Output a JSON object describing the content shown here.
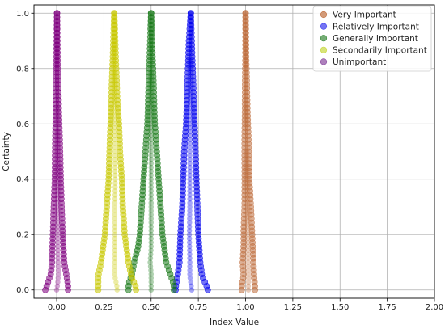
{
  "chart_data": {
    "type": "scatter",
    "xlabel": "Index Value",
    "ylabel": "Certainty",
    "xlim": [
      -0.12,
      2.0
    ],
    "ylim": [
      -0.03,
      1.03
    ],
    "xticks": [
      "0.00",
      "0.25",
      "0.50",
      "0.75",
      "1.00",
      "1.25",
      "1.50",
      "1.75",
      "2.00"
    ],
    "yticks": [
      "0.0",
      "0.2",
      "0.4",
      "0.6",
      "0.8",
      "1.0"
    ],
    "grid": true,
    "legend_position": "top-right",
    "series": [
      {
        "name": "Very Important",
        "color": "#c07040",
        "peak": 1.0,
        "base": [
          0.98,
          1.05
        ],
        "points": [
          [
            0.98,
            0.02
          ],
          [
            0.99,
            0.05
          ],
          [
            0.985,
            0.1
          ],
          [
            0.99,
            0.16
          ],
          [
            0.99,
            0.22
          ],
          [
            0.995,
            0.3
          ],
          [
            0.995,
            0.4
          ],
          [
            0.995,
            0.55
          ],
          [
            0.997,
            0.7
          ],
          [
            0.999,
            0.85
          ],
          [
            1.0,
            1.0
          ],
          [
            1.003,
            0.85
          ],
          [
            1.008,
            0.7
          ],
          [
            1.015,
            0.55
          ],
          [
            1.02,
            0.4
          ],
          [
            1.028,
            0.3
          ],
          [
            1.035,
            0.2
          ],
          [
            1.04,
            0.12
          ],
          [
            1.045,
            0.05
          ],
          [
            1.05,
            0.01
          ]
        ]
      },
      {
        "name": "Relatively Important",
        "color": "#0000ee",
        "peak": 0.71,
        "base": [
          0.63,
          0.8
        ],
        "points": [
          [
            0.63,
            0.01
          ],
          [
            0.64,
            0.05
          ],
          [
            0.65,
            0.1
          ],
          [
            0.655,
            0.2
          ],
          [
            0.665,
            0.3
          ],
          [
            0.67,
            0.4
          ],
          [
            0.675,
            0.5
          ],
          [
            0.685,
            0.6
          ],
          [
            0.69,
            0.7
          ],
          [
            0.695,
            0.8
          ],
          [
            0.7,
            0.9
          ],
          [
            0.71,
            1.0
          ],
          [
            0.715,
            0.9
          ],
          [
            0.72,
            0.8
          ],
          [
            0.725,
            0.7
          ],
          [
            0.73,
            0.6
          ],
          [
            0.735,
            0.5
          ],
          [
            0.74,
            0.4
          ],
          [
            0.745,
            0.3
          ],
          [
            0.75,
            0.2
          ],
          [
            0.76,
            0.1
          ],
          [
            0.77,
            0.05
          ],
          [
            0.8,
            0.005
          ]
        ]
      },
      {
        "name": "Generally Important",
        "color": "#1a7a1a",
        "peak": 0.5,
        "base": [
          0.38,
          0.62
        ],
        "points": [
          [
            0.38,
            0.02
          ],
          [
            0.4,
            0.06
          ],
          [
            0.41,
            0.1
          ],
          [
            0.43,
            0.15
          ],
          [
            0.44,
            0.2
          ],
          [
            0.45,
            0.3
          ],
          [
            0.46,
            0.4
          ],
          [
            0.47,
            0.5
          ],
          [
            0.48,
            0.6
          ],
          [
            0.485,
            0.7
          ],
          [
            0.49,
            0.8
          ],
          [
            0.495,
            0.9
          ],
          [
            0.5,
            1.0
          ],
          [
            0.505,
            0.9
          ],
          [
            0.51,
            0.8
          ],
          [
            0.515,
            0.7
          ],
          [
            0.52,
            0.6
          ],
          [
            0.53,
            0.5
          ],
          [
            0.54,
            0.4
          ],
          [
            0.55,
            0.3
          ],
          [
            0.56,
            0.2
          ],
          [
            0.57,
            0.15
          ],
          [
            0.58,
            0.1
          ],
          [
            0.6,
            0.06
          ],
          [
            0.62,
            0.02
          ]
        ]
      },
      {
        "name": "Secondarily Important",
        "color": "#c8c800",
        "peak": 0.3,
        "base": [
          0.22,
          0.42
        ],
        "points": [
          [
            0.22,
            0.05
          ],
          [
            0.235,
            0.1
          ],
          [
            0.245,
            0.15
          ],
          [
            0.255,
            0.2
          ],
          [
            0.265,
            0.3
          ],
          [
            0.275,
            0.4
          ],
          [
            0.28,
            0.5
          ],
          [
            0.285,
            0.6
          ],
          [
            0.29,
            0.7
          ],
          [
            0.295,
            0.8
          ],
          [
            0.3,
            0.9
          ],
          [
            0.305,
            1.0
          ],
          [
            0.31,
            0.9
          ],
          [
            0.315,
            0.8
          ],
          [
            0.32,
            0.7
          ],
          [
            0.33,
            0.6
          ],
          [
            0.335,
            0.5
          ],
          [
            0.345,
            0.4
          ],
          [
            0.35,
            0.3
          ],
          [
            0.36,
            0.2
          ],
          [
            0.37,
            0.15
          ],
          [
            0.38,
            0.1
          ],
          [
            0.395,
            0.05
          ],
          [
            0.42,
            0.01
          ]
        ]
      },
      {
        "name": "Unimportant",
        "color": "#800080",
        "peak": 0.0,
        "base": [
          -0.06,
          0.06
        ],
        "points": [
          [
            -0.06,
            0.0
          ],
          [
            -0.045,
            0.03
          ],
          [
            -0.03,
            0.06
          ],
          [
            -0.025,
            0.1
          ],
          [
            -0.02,
            0.2
          ],
          [
            -0.015,
            0.3
          ],
          [
            -0.01,
            0.4
          ],
          [
            -0.008,
            0.5
          ],
          [
            -0.006,
            0.6
          ],
          [
            -0.004,
            0.7
          ],
          [
            -0.002,
            0.8
          ],
          [
            0.0,
            0.9
          ],
          [
            0.002,
            1.0
          ],
          [
            0.004,
            0.9
          ],
          [
            0.006,
            0.8
          ],
          [
            0.01,
            0.7
          ],
          [
            0.014,
            0.6
          ],
          [
            0.018,
            0.5
          ],
          [
            0.022,
            0.4
          ],
          [
            0.026,
            0.3
          ],
          [
            0.032,
            0.2
          ],
          [
            0.04,
            0.1
          ],
          [
            0.05,
            0.06
          ],
          [
            0.06,
            0.02
          ]
        ]
      }
    ]
  }
}
